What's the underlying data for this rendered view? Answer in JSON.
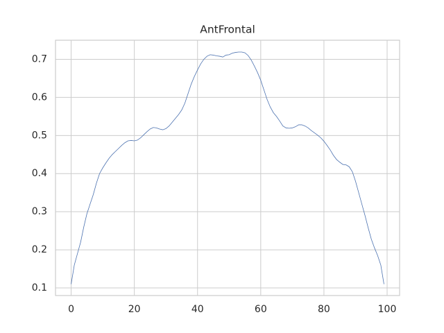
{
  "chart_data": {
    "type": "line",
    "title": "AntFrontal",
    "x": [
      0,
      1,
      2,
      3,
      4,
      5,
      6,
      7,
      8,
      9,
      10,
      11,
      12,
      13,
      14,
      15,
      16,
      17,
      18,
      19,
      20,
      21,
      22,
      23,
      24,
      25,
      26,
      27,
      28,
      29,
      30,
      31,
      32,
      33,
      34,
      35,
      36,
      37,
      38,
      39,
      40,
      41,
      42,
      43,
      44,
      45,
      46,
      47,
      48,
      49,
      50,
      51,
      52,
      53,
      54,
      55,
      56,
      57,
      58,
      59,
      60,
      61,
      62,
      63,
      64,
      65,
      66,
      67,
      68,
      69,
      70,
      71,
      72,
      73,
      74,
      75,
      76,
      77,
      78,
      79,
      80,
      81,
      82,
      83,
      84,
      85,
      86,
      87,
      88,
      89,
      90,
      91,
      92,
      93,
      94,
      95,
      96,
      97,
      98,
      99
    ],
    "series": [
      {
        "color": "#4c72b0",
        "values": [
          0.11,
          0.16,
          0.19,
          0.22,
          0.26,
          0.295,
          0.32,
          0.345,
          0.375,
          0.4,
          0.415,
          0.428,
          0.44,
          0.45,
          0.458,
          0.466,
          0.474,
          0.481,
          0.486,
          0.487,
          0.486,
          0.488,
          0.494,
          0.502,
          0.51,
          0.517,
          0.521,
          0.52,
          0.517,
          0.515,
          0.518,
          0.525,
          0.535,
          0.545,
          0.555,
          0.567,
          0.585,
          0.61,
          0.635,
          0.655,
          0.672,
          0.688,
          0.7,
          0.708,
          0.712,
          0.711,
          0.709,
          0.708,
          0.706,
          0.711,
          0.712,
          0.716,
          0.718,
          0.719,
          0.719,
          0.717,
          0.71,
          0.698,
          0.682,
          0.665,
          0.645,
          0.62,
          0.595,
          0.575,
          0.56,
          0.55,
          0.538,
          0.525,
          0.52,
          0.519,
          0.52,
          0.523,
          0.528,
          0.528,
          0.525,
          0.52,
          0.513,
          0.507,
          0.501,
          0.494,
          0.485,
          0.474,
          0.462,
          0.448,
          0.437,
          0.43,
          0.424,
          0.423,
          0.418,
          0.405,
          0.38,
          0.35,
          0.32,
          0.29,
          0.258,
          0.228,
          0.205,
          0.185,
          0.16,
          0.11
        ]
      }
    ],
    "xlim": [
      -4.95,
      103.95
    ],
    "xticks": [
      0,
      20,
      40,
      60,
      80,
      100
    ],
    "ylim": [
      0.08,
      0.75
    ],
    "yticks": [
      0.1,
      0.2,
      0.3,
      0.4,
      0.5,
      0.6,
      0.7
    ],
    "grid": true
  }
}
